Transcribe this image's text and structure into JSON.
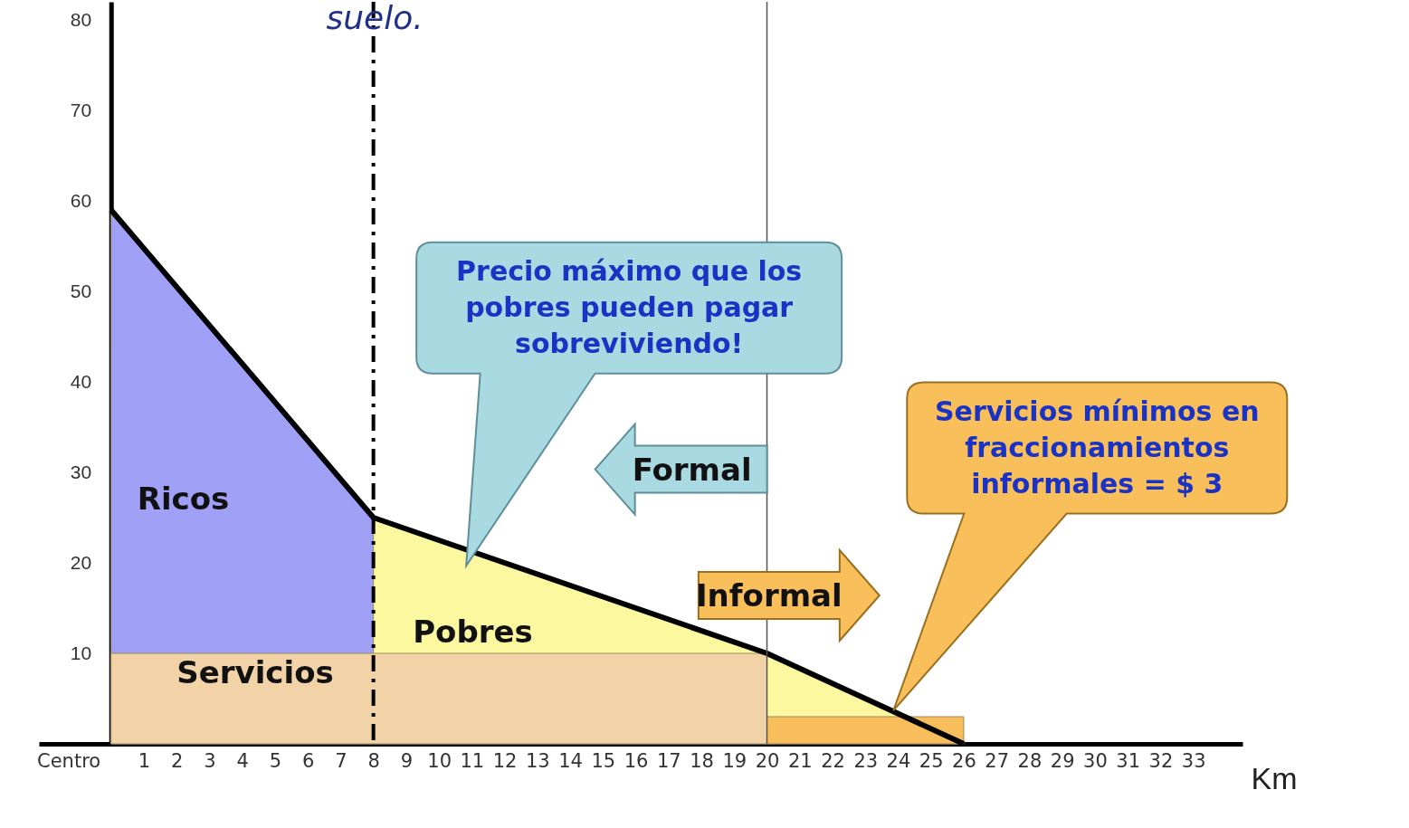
{
  "chart_data": {
    "type": "area",
    "title": "suelo.",
    "xlabel": "Km",
    "xlim": [
      -2.2,
      34.5
    ],
    "xticks": [
      {
        "value": -1.3,
        "label": "Centro"
      },
      1,
      2,
      3,
      4,
      5,
      6,
      7,
      8,
      9,
      10,
      11,
      12,
      13,
      14,
      15,
      16,
      17,
      18,
      19,
      20,
      21,
      22,
      23,
      24,
      25,
      26,
      27,
      28,
      29,
      30,
      31,
      32,
      33
    ],
    "ylim": [
      0,
      82
    ],
    "yticks": [
      10,
      20,
      30,
      40,
      50,
      60,
      70,
      80
    ],
    "series": [
      {
        "name": "Ricos",
        "color": "#a0a0f6",
        "x": [
          0,
          8
        ],
        "values": [
          59,
          25
        ]
      },
      {
        "name": "Pobres",
        "color": "#fbf8a0",
        "x": [
          8,
          20,
          26
        ],
        "values": [
          25,
          10,
          0
        ]
      },
      {
        "name": "Servicios",
        "color": "#f2d3a8",
        "x": [
          0,
          20
        ],
        "values": [
          10,
          10
        ]
      },
      {
        "color": "#f8be5c",
        "x": [
          20,
          26
        ],
        "values": [
          3,
          3
        ]
      },
      {
        "type": "line",
        "color": "#000000",
        "x": [
          0,
          8,
          20,
          26
        ],
        "values": [
          59,
          25,
          10,
          0
        ]
      }
    ],
    "ref_lines": [
      {
        "axis": "x",
        "value": 8,
        "color": "#000000",
        "line_style": "dashed"
      },
      {
        "axis": "x",
        "value": 20,
        "color": "#555555",
        "line_style": "solid"
      }
    ],
    "annotations": [
      "Precio máximo que los\npobres pueden pagar\nsobreviviendo!",
      "Servicios mínimos en\nfraccionamientos\ninformales  = $ 3",
      "Formal",
      "Informal"
    ]
  }
}
